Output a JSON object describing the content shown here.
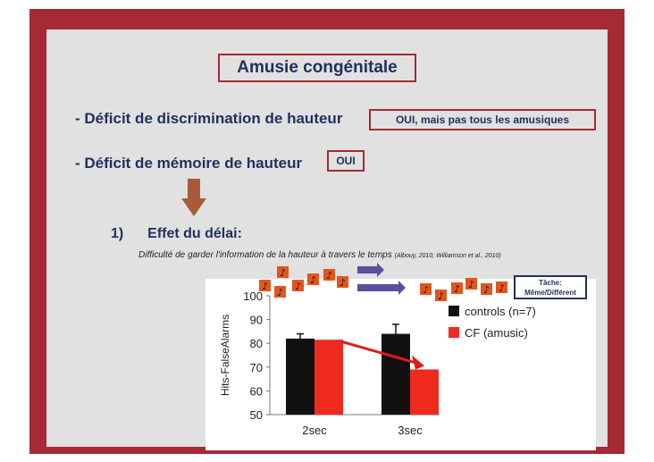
{
  "slide": {
    "title": "Amusie congénitale",
    "point1": "- Déficit de discrimination de hauteur",
    "point1_answer": "OUI, mais pas tous les amusiques",
    "point2": "- Déficit de mémoire de hauteur",
    "point2_answer": "OUI",
    "subheading_num": "1)",
    "subheading": "Effet du délai:",
    "description": "Difficulté de garder l'information de la hauteur à travers le temps",
    "references": "(Albouy, 2010; Williamson et al., 2010)",
    "task_label_1": "Tâche:",
    "task_label_2": "Même/Différent",
    "note_glyph": "♪",
    "colors": {
      "frame": "#a52a35",
      "panel": "#e1e1e1",
      "text": "#23305e",
      "note_tile": "#e2561d",
      "arrow": "#5b4f9e"
    }
  },
  "chart_data": {
    "type": "bar",
    "categories": [
      "2sec",
      "3sec"
    ],
    "series": [
      {
        "name": "controls (n=7)",
        "values": [
          82,
          84
        ],
        "errors": [
          2,
          4
        ],
        "color": "#111111"
      },
      {
        "name": "CF (amusic)",
        "values": [
          81.5,
          69
        ],
        "errors": [
          0,
          0
        ],
        "color": "#ee2a1f"
      }
    ],
    "ylabel": "Hits-FalseAlarms",
    "ylim": [
      50,
      100
    ],
    "yticks": [
      "50",
      "60",
      "70",
      "80",
      "90",
      "100"
    ],
    "legend": "top-right",
    "grid": false,
    "annotation": "red arrow from CF 2sec to CF 3sec"
  }
}
